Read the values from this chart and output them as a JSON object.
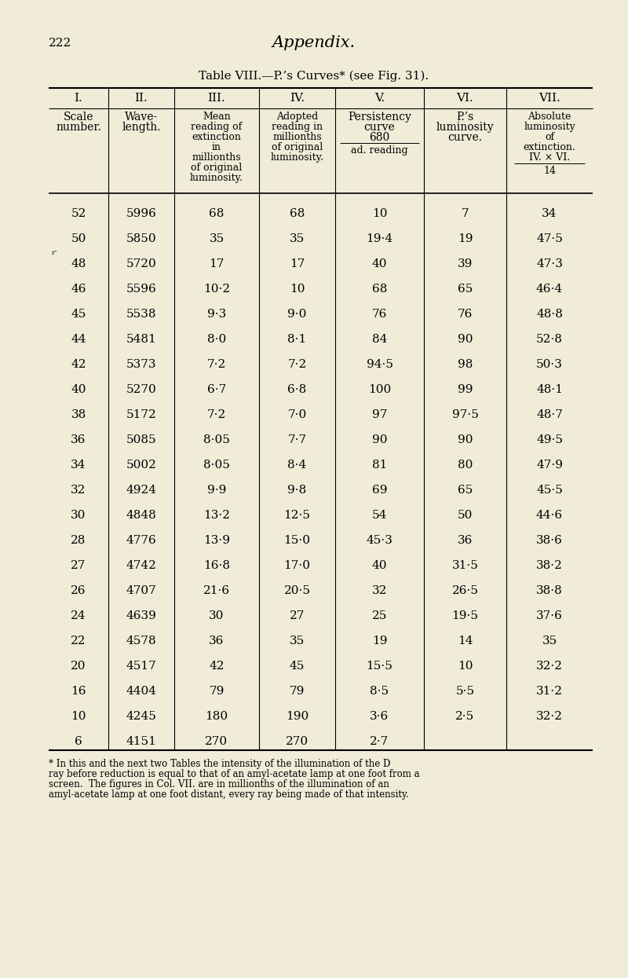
{
  "page_number": "222",
  "page_title": "Appendix.",
  "table_title": "Table VIII.—P.’s Curves* (see Fig. 31).",
  "background_color": "#f0ecd8",
  "col_headers_roman": [
    "I.",
    "II.",
    "III.",
    "IV.",
    "V.",
    "VI.",
    "VII."
  ],
  "rows": [
    [
      "52",
      "5996",
      "68",
      "68",
      "10",
      "7",
      "34"
    ],
    [
      "50",
      "5850",
      "35",
      "35",
      "19·4",
      "19",
      "47·5"
    ],
    [
      "48",
      "5720",
      "17",
      "17",
      "40",
      "39",
      "47·3"
    ],
    [
      "46",
      "5596",
      "10·2",
      "10",
      "68",
      "65",
      "46·4"
    ],
    [
      "45",
      "5538",
      "9·3",
      "9·0",
      "76",
      "76",
      "48·8"
    ],
    [
      "44",
      "5481",
      "8·0",
      "8·1",
      "84",
      "90",
      "52·8"
    ],
    [
      "42",
      "5373",
      "7·2",
      "7·2",
      "94·5",
      "98",
      "50·3"
    ],
    [
      "40",
      "5270",
      "6·7",
      "6·8",
      "100",
      "99",
      "48·1"
    ],
    [
      "38",
      "5172",
      "7·2",
      "7·0",
      "97",
      "97·5",
      "48·7"
    ],
    [
      "36",
      "5085",
      "8·05",
      "7·7",
      "90",
      "90",
      "49·5"
    ],
    [
      "34",
      "5002",
      "8·05",
      "8·4",
      "81",
      "80",
      "47·9"
    ],
    [
      "32",
      "4924",
      "9·9",
      "9·8",
      "69",
      "65",
      "45·5"
    ],
    [
      "30",
      "4848",
      "13·2",
      "12·5",
      "54",
      "50",
      "44·6"
    ],
    [
      "28",
      "4776",
      "13·9",
      "15·0",
      "45·3",
      "36",
      "38·6"
    ],
    [
      "27",
      "4742",
      "16·8",
      "17·0",
      "40",
      "31·5",
      "38·2"
    ],
    [
      "26",
      "4707",
      "21·6",
      "20·5",
      "32",
      "26·5",
      "38·8"
    ],
    [
      "24",
      "4639",
      "30",
      "27",
      "25",
      "19·5",
      "37·6"
    ],
    [
      "22",
      "4578",
      "36",
      "35",
      "19",
      "14",
      "35"
    ],
    [
      "20",
      "4517",
      "42",
      "45",
      "15·5",
      "10",
      "32·2"
    ],
    [
      "16",
      "4404",
      "79",
      "79",
      "8·5",
      "5·5",
      "31·2"
    ],
    [
      "10",
      "4245",
      "180",
      "190",
      "3·6",
      "2·5",
      "32·2"
    ],
    [
      "6",
      "4151",
      "270",
      "270",
      "2·7",
      "",
      ""
    ]
  ],
  "footnote_lines": [
    "* In this and the next two Tables the intensity of the illumination of the D",
    "ray before reduction is equal to that of an amyl-acetate lamp at one foot from a",
    "screen.  The figures in Col. VII. are in millionths of the illumination of an",
    "amyl-acetate lamp at one foot distant, every ray being made of that intensity."
  ]
}
